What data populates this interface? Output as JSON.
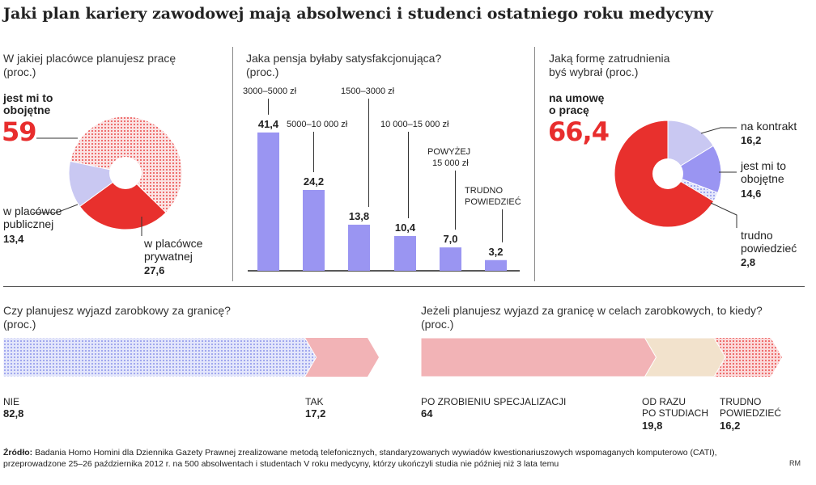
{
  "header": {
    "title": "Jaki plan kariery zawodowej mają absolwenci i studenci ostatniego roku medycyny"
  },
  "colors": {
    "red": "#e8302d",
    "lilac": "#9a95f2",
    "lilac_light": "#c9c8f2",
    "pink": "#f2b3b6",
    "beige": "#f2e2cc",
    "dots_red": "#ea4a4a",
    "dots_blue": "#8c94ea"
  },
  "chart_data": [
    {
      "type": "pie",
      "title": "W jakiej placówce planujesz pracę",
      "unit": "(proc.)",
      "slices": [
        {
          "label_line1": "jest mi to",
          "label_line2": "obojętne",
          "value": 59,
          "value_text": "59"
        },
        {
          "label_line1": "w placówce",
          "label_line2": "prywatnej",
          "value": 27.6,
          "value_text": "27,6"
        },
        {
          "label_line1": "w placówce",
          "label_line2": "publicznej",
          "value": 13.4,
          "value_text": "13,4"
        }
      ]
    },
    {
      "type": "bar",
      "title": "Jaka pensja byłaby satysfakcjonująca?",
      "unit": "(proc.)",
      "ylim": [
        0,
        45
      ],
      "bars": [
        {
          "label": "3000–5000 zł",
          "label2": "",
          "value": 41.4,
          "value_text": "41,4"
        },
        {
          "label": "5000–10 000 zł",
          "label2": "",
          "value": 24.2,
          "value_text": "24,2"
        },
        {
          "label": "1500–3000 zł",
          "label2": "",
          "value": 13.8,
          "value_text": "13,8"
        },
        {
          "label": "10 000–15 000 zł",
          "label2": "",
          "value": 10.4,
          "value_text": "10,4"
        },
        {
          "label": "POWYŻEJ",
          "label2": "15 000 zł",
          "value": 7.0,
          "value_text": "7,0"
        },
        {
          "label": "TRUDNO",
          "label2": "POWIEDZIEĆ",
          "value": 3.2,
          "value_text": "3,2"
        }
      ]
    },
    {
      "type": "pie",
      "title": "Jaką formę zatrudnienia byś wybrał",
      "unit": "(proc.)",
      "slices": [
        {
          "label_line1": "na umowę",
          "label_line2": "o pracę",
          "value": 66.4,
          "value_text": "66,4"
        },
        {
          "label_line1": "na kontrakt",
          "label_line2": "",
          "value": 16.2,
          "value_text": "16,2"
        },
        {
          "label_line1": "jest mi to",
          "label_line2": "obojętne",
          "value": 14.6,
          "value_text": "14,6"
        },
        {
          "label_line1": "trudno",
          "label_line2": "powiedzieć",
          "value": 2.8,
          "value_text": "2,8"
        }
      ]
    },
    {
      "type": "bar",
      "subtype": "stacked-horizontal",
      "title": "Czy planujesz wyjazd zarobkowy za granicę?",
      "unit": "(proc.)",
      "segments": [
        {
          "label": "NIE",
          "label2": "",
          "value": 82.8,
          "value_text": "82,8"
        },
        {
          "label": "TAK",
          "label2": "",
          "value": 17.2,
          "value_text": "17,2"
        }
      ]
    },
    {
      "type": "bar",
      "subtype": "stacked-horizontal",
      "title": "Jeżeli planujesz wyjazd za granicę w celach zarobkowych, to kiedy?",
      "unit": "(proc.)",
      "segments": [
        {
          "label": "PO ZROBIENIU SPECJALIZACJI",
          "label2": "",
          "value": 64,
          "value_text": "64"
        },
        {
          "label": "OD RAZU",
          "label2": "PO STUDIACH",
          "value": 19.8,
          "value_text": "19,8"
        },
        {
          "label": "TRUDNO",
          "label2": "POWIEDZIEĆ",
          "value": 16.2,
          "value_text": "16,2"
        }
      ]
    }
  ],
  "q1": {
    "line1": "W jakiej placówce planujesz pracę",
    "line2": "(proc.)"
  },
  "q2": {
    "line1": "Jaka pensja byłaby satysfakcjonująca?",
    "line2": "(proc.)"
  },
  "q3": {
    "line1": "Jaką formę zatrudnienia",
    "line2": "byś wybrał (proc.)"
  },
  "q4": {
    "line1": "Czy planujesz wyjazd zarobkowy za granicę?",
    "line2": "(proc.)"
  },
  "q5": {
    "line1": "Jeżeli planujesz wyjazd za granicę w celach zarobkowych, to kiedy?",
    "line2": "(proc.)"
  },
  "footer": {
    "source_label": "Źródło:",
    "line1": "Badania Homo Homini dla Dziennika Gazety Prawnej zrealizowane metodą telefonicznych, standaryzowanych wywiadów kwestionariuszowych wspomaganych komputerowo (CATI),",
    "line2": "przeprowadzone 25–26 października 2012 r. na 500 absolwentach i studentach V roku medycyny, którzy ukończyli studia nie później niż 3 lata temu",
    "credit": "RM"
  }
}
